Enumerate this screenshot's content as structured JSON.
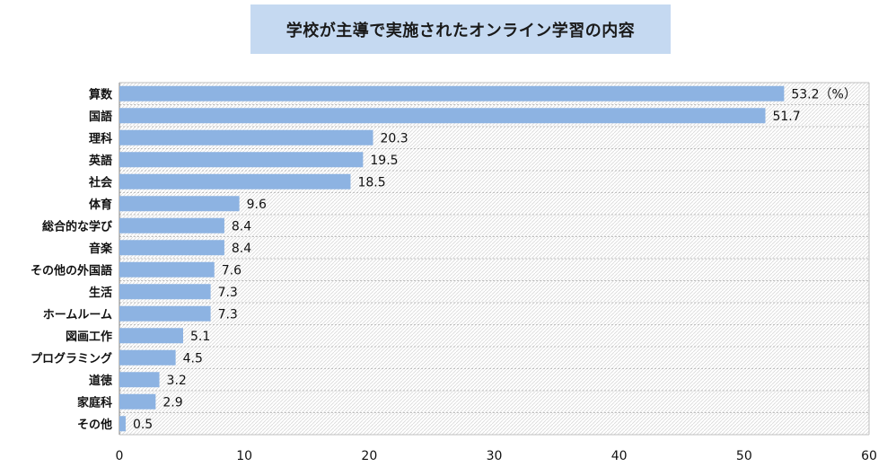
{
  "chart_data": {
    "type": "bar",
    "orientation": "horizontal",
    "title": "学校が主導で実施されたオンライン学習の内容",
    "categories": [
      "算数",
      "国語",
      "理科",
      "英語",
      "社会",
      "体育",
      "総合的な学び",
      "音楽",
      "その他の外国語",
      "生活",
      "ホームルーム",
      "図画工作",
      "プログラミング",
      "道徳",
      "家庭科",
      "その他"
    ],
    "values": [
      53.2,
      51.7,
      20.3,
      19.5,
      18.5,
      9.6,
      8.4,
      8.4,
      7.6,
      7.3,
      7.3,
      5.1,
      4.5,
      3.2,
      2.9,
      0.5
    ],
    "value_labels": [
      "53.2（%）",
      "51.7",
      "20.3",
      "19.5",
      "18.5",
      "9.6",
      "8.4",
      "8.4",
      "7.6",
      "7.3",
      "7.3",
      "5.1",
      "4.5",
      "3.2",
      "2.9",
      "0.5"
    ],
    "xlim": [
      0,
      60
    ],
    "xticks": [
      "0",
      "10",
      "20",
      "30",
      "40",
      "50",
      "60"
    ],
    "xlabel": "",
    "ylabel": "",
    "grid": true,
    "bar_color": "#8db3e2",
    "plot_background": "hatched gray"
  }
}
